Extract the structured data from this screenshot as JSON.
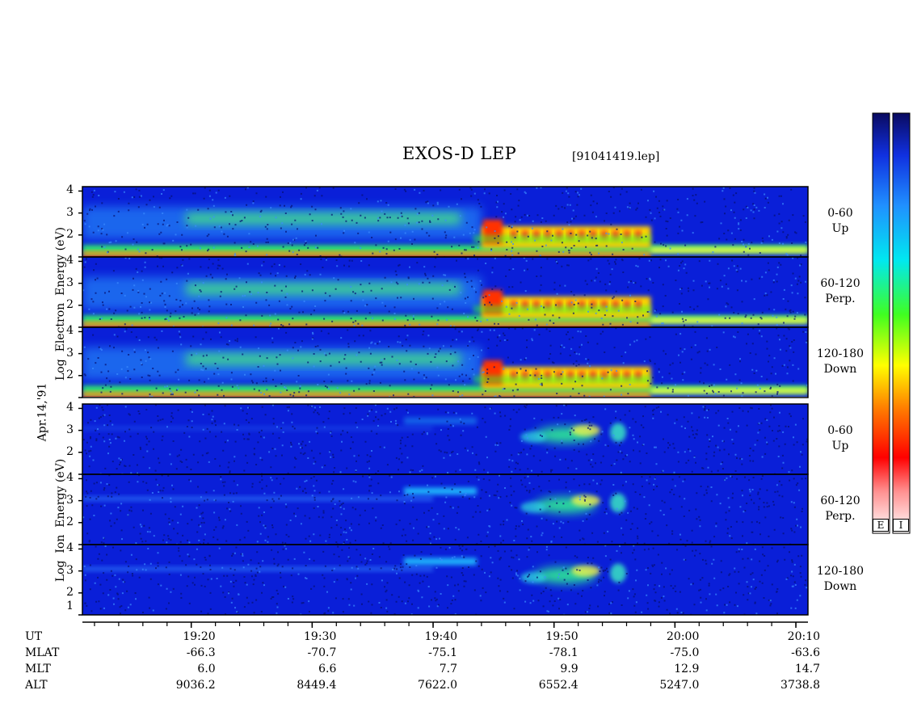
{
  "title": "EXOS-D LEP",
  "file_label": "[91041419.lep]",
  "date_label": "Apr.14,'91",
  "electron_axis_label": [
    "Log",
    "Electron",
    "Energy",
    "(eV)"
  ],
  "ion_axis_label": [
    "Log",
    "Ion",
    "Energy",
    "(eV)"
  ],
  "energy_ticks": [
    "4",
    "3",
    "2"
  ],
  "ion_energy_ticks_bottom": [
    "1"
  ],
  "colors": {
    "bg": "#0a1fd8",
    "colorbar_stops": [
      "#0a0a60",
      "#1030e0",
      "#30a0ff",
      "#00e8f0",
      "#40ff40",
      "#ffff00",
      "#ff8000",
      "#ff0000",
      "#ffffff"
    ]
  },
  "colorbar_labels": [
    "E",
    "I"
  ],
  "chart_data": {
    "type": "heatmap",
    "title": "EXOS-D LEP",
    "time_axis": {
      "x_range": [
        "19:11",
        "20:11"
      ],
      "major_ticks": [
        "19:20",
        "19:30",
        "19:40",
        "19:50",
        "20:00",
        "20:10"
      ],
      "minor_tick_interval_min": 2
    },
    "y_axis": {
      "label": "Log Energy (eV)",
      "range": [
        1,
        4.2
      ],
      "ticks": [
        2,
        3,
        4
      ]
    },
    "panels": [
      {
        "species": "Electron",
        "channel": "0-60",
        "direction": "Up"
      },
      {
        "species": "Electron",
        "channel": "60-120",
        "direction": "Perp."
      },
      {
        "species": "Electron",
        "channel": "120-180",
        "direction": "Down"
      },
      {
        "species": "Ion",
        "channel": "0-60",
        "direction": "Up"
      },
      {
        "species": "Ion",
        "channel": "60-120",
        "direction": "Perp."
      },
      {
        "species": "Ion",
        "channel": "120-180",
        "direction": "Down"
      }
    ],
    "ephemeris": {
      "rows": [
        "UT",
        "MLAT",
        "MLT",
        "ALT"
      ],
      "columns": [
        {
          "UT": "19:20",
          "MLAT": "-66.3",
          "MLT": "6.0",
          "ALT": "9036.2"
        },
        {
          "UT": "19:30",
          "MLAT": "-70.7",
          "MLT": "6.6",
          "ALT": "8449.4"
        },
        {
          "UT": "19:40",
          "MLAT": "-75.1",
          "MLT": "7.7",
          "ALT": "7622.0"
        },
        {
          "UT": "19:50",
          "MLAT": "-78.1",
          "MLT": "9.9",
          "ALT": "6552.4"
        },
        {
          "UT": "20:00",
          "MLAT": "-75.0",
          "MLT": "12.9",
          "ALT": "5247.0"
        },
        {
          "UT": "20:10",
          "MLAT": "-63.6",
          "MLT": "14.7",
          "ALT": "3738.8"
        }
      ]
    },
    "features": {
      "electron_intense_burst_start": "19:44",
      "electron_intense_burst_end": "19:58",
      "ion_enhancement_start": "19:40",
      "ion_enhancement_end": "19:57"
    }
  }
}
